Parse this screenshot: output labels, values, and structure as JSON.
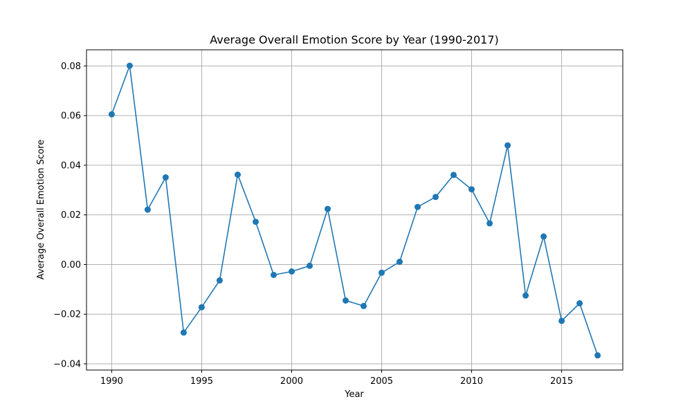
{
  "chart_data": {
    "type": "line",
    "title": "Average Overall Emotion Score by Year (1990-2017)",
    "xlabel": "Year",
    "ylabel": "Average Overall Emotion Score",
    "xlim": [
      1988.6,
      2018.4
    ],
    "ylim": [
      -0.0425,
      0.0865
    ],
    "x_ticks": [
      1990,
      1995,
      2000,
      2005,
      2010,
      2015
    ],
    "x_tick_labels": [
      "1990",
      "1995",
      "2000",
      "2005",
      "2010",
      "2015"
    ],
    "y_ticks": [
      -0.04,
      -0.02,
      0.0,
      0.02,
      0.04,
      0.06,
      0.08
    ],
    "y_tick_labels": [
      "−0.04",
      "−0.02",
      "0.00",
      "0.02",
      "0.04",
      "0.06",
      "0.08"
    ],
    "grid": true,
    "legend": "none",
    "colors": {
      "series": "#1f77b4",
      "grid": "#b0b0b0",
      "axis": "#000000"
    },
    "series": [
      {
        "x": [
          1990,
          1991,
          1992,
          1993,
          1994,
          1995,
          1996,
          1997,
          1998,
          1999,
          2000,
          2001,
          2002,
          2003,
          2004,
          2005,
          2006,
          2007,
          2008,
          2009,
          2010,
          2011,
          2012,
          2013,
          2014,
          2015,
          2016,
          2017
        ],
        "values": [
          0.0605,
          0.0801,
          0.0221,
          0.0351,
          -0.0274,
          -0.0172,
          -0.0064,
          0.0362,
          0.0172,
          -0.0042,
          -0.0028,
          -0.0005,
          0.0224,
          -0.0145,
          -0.0167,
          -0.0033,
          0.0011,
          0.0232,
          0.0272,
          0.0361,
          0.0303,
          0.0166,
          0.048,
          -0.0125,
          0.0113,
          -0.0227,
          -0.0156,
          -0.0366
        ]
      }
    ]
  }
}
